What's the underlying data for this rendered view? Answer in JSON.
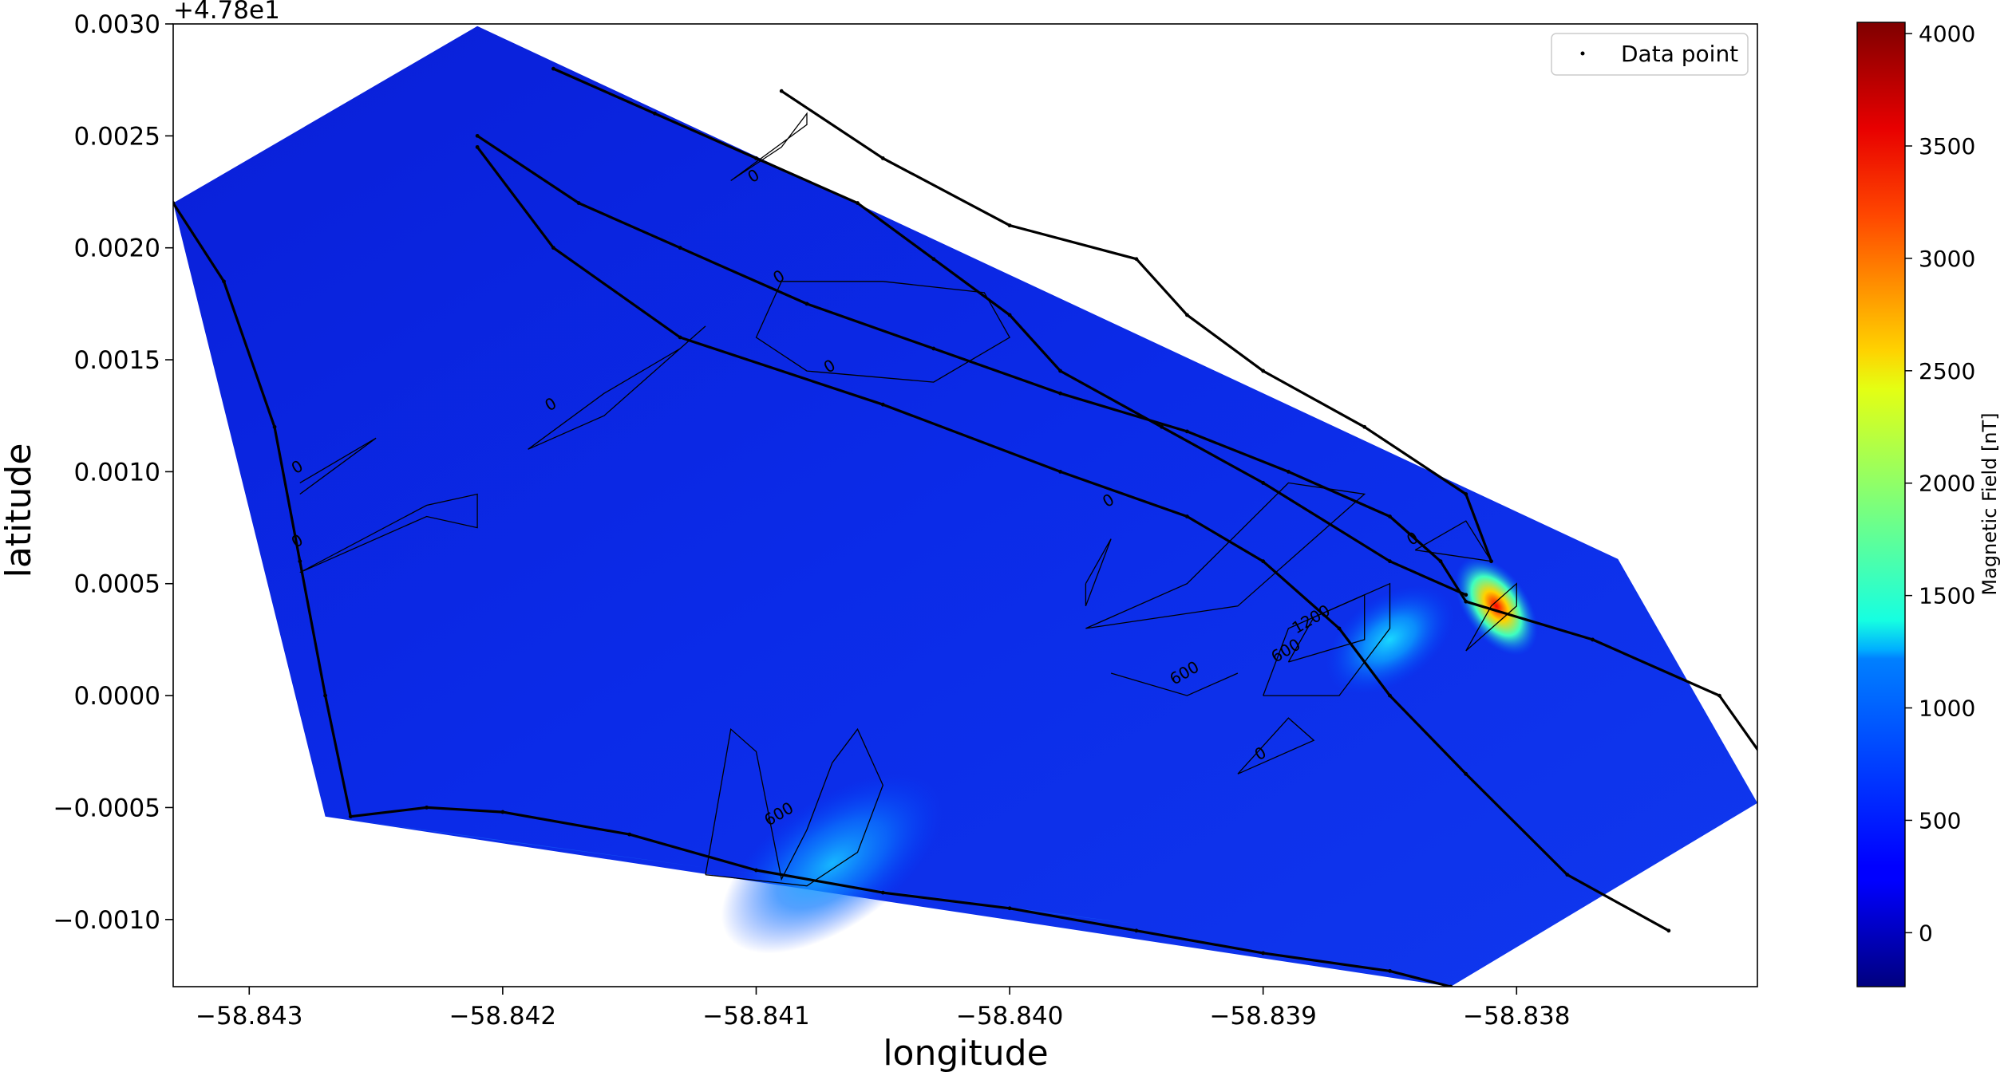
{
  "chart_data": {
    "type": "heatmap",
    "title": "",
    "xlabel": "longitude",
    "ylabel": "latitude",
    "y_offset_text": "+4.78e1",
    "xlim": [
      -58.8433,
      -58.83705
    ],
    "ylim": [
      -0.0013,
      0.003
    ],
    "xticks": [
      -58.843,
      -58.842,
      -58.841,
      -58.84,
      -58.839,
      -58.838
    ],
    "xtick_labels": [
      "−58.843",
      "−58.842",
      "−58.841",
      "−58.840",
      "−58.839",
      "−58.838"
    ],
    "yticks": [
      -0.001,
      -0.0005,
      0.0,
      0.0005,
      0.001,
      0.0015,
      0.002,
      0.0025,
      0.003
    ],
    "ytick_labels": [
      "−0.0010",
      "−0.0005",
      "0.0000",
      "0.0005",
      "0.0010",
      "0.0015",
      "0.0020",
      "0.0025",
      "0.0030"
    ],
    "colorbar": {
      "label": "Magnetic Field [nT]",
      "range": [
        -240,
        4050
      ],
      "colormap": "jet",
      "ticks": [
        0,
        500,
        1000,
        1500,
        2000,
        2500,
        3000,
        3500,
        4000
      ],
      "tick_labels": [
        "0",
        "500",
        "1000",
        "1500",
        "2000",
        "2500",
        "3000",
        "3500",
        "4000"
      ]
    },
    "legend": {
      "position": "top-right",
      "entries": [
        "Data point"
      ]
    },
    "grid": false,
    "survey_boundary": [
      [
        -58.8433,
        0.0022
      ],
      [
        -58.8421,
        0.00299
      ],
      [
        -58.8376,
        0.00061
      ],
      [
        -58.83705,
        -0.00048
      ],
      [
        -58.83826,
        -0.0013
      ],
      [
        -58.8427,
        -0.00054
      ],
      [
        -58.8433,
        0.0022
      ]
    ],
    "track_lines": [
      [
        [
          -58.8433,
          0.0022
        ],
        [
          -58.8431,
          0.00185
        ],
        [
          -58.8429,
          0.0012
        ],
        [
          -58.8428,
          0.0006
        ],
        [
          -58.8427,
          0.0
        ],
        [
          -58.8426,
          -0.00054
        ],
        [
          -58.8423,
          -0.0005
        ],
        [
          -58.842,
          -0.00052
        ],
        [
          -58.8415,
          -0.00062
        ],
        [
          -58.841,
          -0.00078
        ],
        [
          -58.8405,
          -0.00088
        ],
        [
          -58.84,
          -0.00095
        ],
        [
          -58.8395,
          -0.00105
        ],
        [
          -58.839,
          -0.00115
        ],
        [
          -58.8385,
          -0.00123
        ],
        [
          -58.83826,
          -0.0013
        ]
      ],
      [
        [
          -58.8421,
          0.0025
        ],
        [
          -58.8417,
          0.0022
        ],
        [
          -58.8413,
          0.002
        ],
        [
          -58.8408,
          0.00175
        ],
        [
          -58.8403,
          0.00155
        ],
        [
          -58.8398,
          0.00135
        ],
        [
          -58.8393,
          0.00118
        ],
        [
          -58.8389,
          0.001
        ],
        [
          -58.8385,
          0.0008
        ],
        [
          -58.8383,
          0.0006
        ],
        [
          -58.8382,
          0.00042
        ],
        [
          -58.8377,
          0.00025
        ],
        [
          -58.8372,
          0.0
        ],
        [
          -58.8369,
          -0.00048
        ]
      ],
      [
        [
          -58.8418,
          0.0028
        ],
        [
          -58.8414,
          0.0026
        ],
        [
          -58.841,
          0.0024
        ],
        [
          -58.8406,
          0.0022
        ],
        [
          -58.8403,
          0.00195
        ],
        [
          -58.84,
          0.0017
        ],
        [
          -58.8398,
          0.00145
        ],
        [
          -58.8394,
          0.0012
        ],
        [
          -58.839,
          0.00095
        ],
        [
          -58.8385,
          0.0006
        ],
        [
          -58.8382,
          0.00045
        ]
      ],
      [
        [
          -58.8409,
          0.0027
        ],
        [
          -58.8405,
          0.0024
        ],
        [
          -58.84,
          0.0021
        ],
        [
          -58.8395,
          0.00195
        ],
        [
          -58.8393,
          0.0017
        ],
        [
          -58.839,
          0.00145
        ],
        [
          -58.8386,
          0.0012
        ],
        [
          -58.8382,
          0.0009
        ],
        [
          -58.8381,
          0.0006
        ]
      ],
      [
        [
          -58.8421,
          0.00245
        ],
        [
          -58.8418,
          0.002
        ],
        [
          -58.8413,
          0.0016
        ],
        [
          -58.8405,
          0.0013
        ],
        [
          -58.8398,
          0.001
        ],
        [
          -58.8393,
          0.0008
        ],
        [
          -58.839,
          0.0006
        ],
        [
          -58.8387,
          0.0003
        ],
        [
          -58.8385,
          0.0
        ],
        [
          -58.8382,
          -0.00035
        ],
        [
          -58.8378,
          -0.0008
        ],
        [
          -58.8374,
          -0.00105
        ]
      ]
    ],
    "contours": [
      {
        "level": "0",
        "path": [
          [
            -58.8411,
            0.0023
          ],
          [
            -58.8408,
            0.00255
          ],
          [
            -58.8408,
            0.0026
          ],
          [
            -58.8409,
            0.00245
          ],
          [
            -58.8411,
            0.0023
          ]
        ]
      },
      {
        "level": "0",
        "path": [
          [
            -58.8409,
            0.00185
          ],
          [
            -58.8405,
            0.00185
          ],
          [
            -58.8401,
            0.0018
          ],
          [
            -58.84,
            0.0016
          ],
          [
            -58.8403,
            0.0014
          ],
          [
            -58.8408,
            0.00145
          ],
          [
            -58.841,
            0.0016
          ],
          [
            -58.8409,
            0.00185
          ]
        ]
      },
      {
        "level": "0",
        "path": [
          [
            -58.8419,
            0.0011
          ],
          [
            -58.8416,
            0.00135
          ],
          [
            -58.8413,
            0.00155
          ],
          [
            -58.8412,
            0.00165
          ],
          [
            -58.8416,
            0.00125
          ],
          [
            -58.8419,
            0.0011
          ]
        ]
      },
      {
        "level": "0",
        "path": [
          [
            -58.8428,
            0.0009
          ],
          [
            -58.8425,
            0.00115
          ],
          [
            -58.8428,
            0.00095
          ]
        ]
      },
      {
        "level": "0",
        "path": [
          [
            -58.8428,
            0.00055
          ],
          [
            -58.8423,
            0.00085
          ],
          [
            -58.8421,
            0.0009
          ],
          [
            -58.8421,
            0.00075
          ],
          [
            -58.8423,
            0.0008
          ],
          [
            -58.8428,
            0.00055
          ]
        ]
      },
      {
        "level": "0",
        "path": [
          [
            -58.8397,
            0.0005
          ],
          [
            -58.8396,
            0.0007
          ],
          [
            -58.8397,
            0.0004
          ],
          [
            -58.8397,
            0.0005
          ]
        ]
      },
      {
        "level": "0",
        "path": [
          [
            -58.8397,
            0.0003
          ],
          [
            -58.8393,
            0.0005
          ],
          [
            -58.8389,
            0.00095
          ],
          [
            -58.8386,
            0.0009
          ],
          [
            -58.8391,
            0.0004
          ],
          [
            -58.8397,
            0.0003
          ]
        ]
      },
      {
        "level": "0",
        "path": [
          [
            -58.8391,
            -0.00035
          ],
          [
            -58.8389,
            -0.0001
          ],
          [
            -58.8388,
            -0.0002
          ],
          [
            -58.8391,
            -0.00035
          ]
        ]
      },
      {
        "level": "0",
        "path": [
          [
            -58.8384,
            0.00065
          ],
          [
            -58.8382,
            0.00078
          ],
          [
            -58.8381,
            0.0006
          ],
          [
            -58.8384,
            0.00065
          ]
        ]
      },
      {
        "level": "600",
        "path": [
          [
            -58.8412,
            -0.0008
          ],
          [
            -58.8411,
            -0.00015
          ],
          [
            -58.841,
            -0.00025
          ],
          [
            -58.8409,
            -0.00082
          ],
          [
            -58.8408,
            -0.0006
          ],
          [
            -58.8407,
            -0.0003
          ],
          [
            -58.8406,
            -0.00015
          ],
          [
            -58.8405,
            -0.0004
          ],
          [
            -58.8406,
            -0.0007
          ],
          [
            -58.8408,
            -0.00085
          ],
          [
            -58.8412,
            -0.0008
          ]
        ]
      },
      {
        "level": "600",
        "path": [
          [
            -58.8396,
            0.0001
          ],
          [
            -58.8393,
            0.0
          ],
          [
            -58.8391,
            0.0001
          ]
        ]
      },
      {
        "level": "600",
        "path": [
          [
            -58.839,
            0.0
          ],
          [
            -58.8389,
            0.0003
          ],
          [
            -58.8385,
            0.0005
          ],
          [
            -58.8385,
            0.0003
          ],
          [
            -58.8387,
            0.0
          ],
          [
            -58.839,
            0.0
          ]
        ]
      },
      {
        "level": "1200",
        "path": [
          [
            -58.8389,
            0.00015
          ],
          [
            -58.8388,
            0.00035
          ],
          [
            -58.8386,
            0.00045
          ],
          [
            -58.8386,
            0.00025
          ],
          [
            -58.8389,
            0.00015
          ]
        ]
      },
      {
        "level": "1200",
        "path": [
          [
            -58.8382,
            0.0002
          ],
          [
            -58.8381,
            0.0004
          ],
          [
            -58.838,
            0.0005
          ],
          [
            -58.838,
            0.0004
          ],
          [
            -58.8382,
            0.0002
          ]
        ]
      }
    ],
    "contour_labels": [
      {
        "text": "0",
        "x": -58.841,
        "y": 0.0023
      },
      {
        "text": "0",
        "x": -58.8409,
        "y": 0.00185
      },
      {
        "text": "0",
        "x": -58.8407,
        "y": 0.00145
      },
      {
        "text": "0",
        "x": -58.8418,
        "y": 0.00128
      },
      {
        "text": "0",
        "x": -58.8428,
        "y": 0.001
      },
      {
        "text": "0",
        "x": -58.8428,
        "y": 0.00067
      },
      {
        "text": "0",
        "x": -58.8396,
        "y": 0.00085
      },
      {
        "text": "0",
        "x": -58.839,
        "y": -0.00028
      },
      {
        "text": "0",
        "x": -58.8384,
        "y": 0.00068
      },
      {
        "text": "600",
        "x": -58.8409,
        "y": -0.00055
      },
      {
        "text": "600",
        "x": -58.8393,
        "y": 8e-05
      },
      {
        "text": "600",
        "x": -58.8389,
        "y": 0.00018
      },
      {
        "text": "1200",
        "x": -58.8388,
        "y": 0.00032
      }
    ],
    "anomalies": [
      {
        "x": -58.8385,
        "y": 0.00025,
        "value": 1300
      },
      {
        "x": -58.83808,
        "y": 0.0004,
        "value": 4000
      },
      {
        "x": -58.8407,
        "y": -0.00075,
        "value": 1000
      }
    ]
  }
}
